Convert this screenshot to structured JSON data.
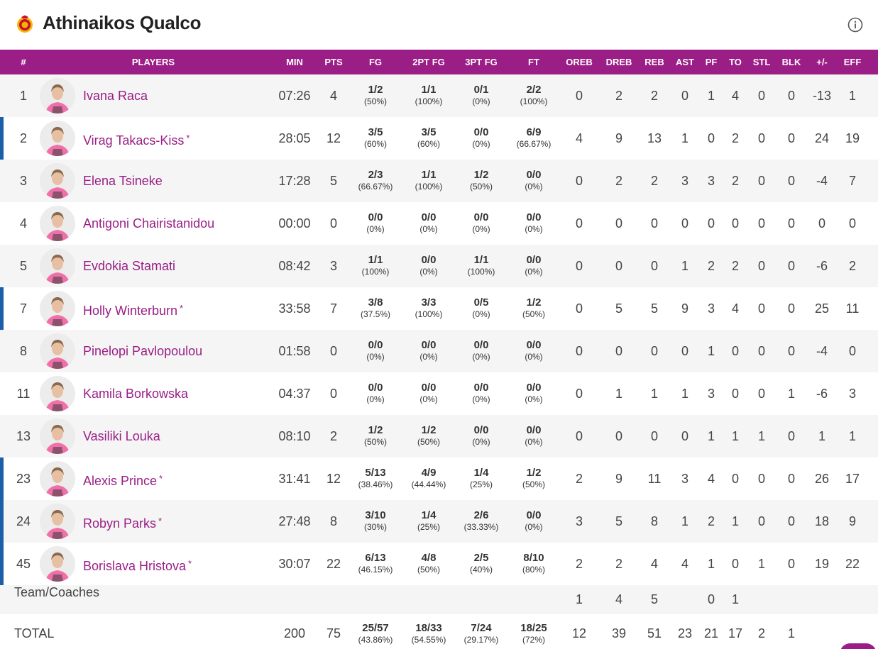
{
  "team": {
    "name": "Athinaikos Qualco",
    "logo_icon": "team-crest-icon",
    "info_icon": "info-icon",
    "brand_color": "#9a1e85",
    "starter_color": "#1a5fa8"
  },
  "columns": [
    "#",
    "PLAYERS",
    "MIN",
    "PTS",
    "FG",
    "2PT FG",
    "3PT FG",
    "FT",
    "OREB",
    "DREB",
    "REB",
    "AST",
    "PF",
    "TO",
    "STL",
    "BLK",
    "+/-",
    "EFF"
  ],
  "players": [
    {
      "num": "1",
      "name": "Ivana Raca",
      "starter": false,
      "min": "07:26",
      "pts": "4",
      "fg": "1/2",
      "fg_pct": "(50%)",
      "fg2": "1/1",
      "fg2_pct": "(100%)",
      "fg3": "0/1",
      "fg3_pct": "(0%)",
      "ft": "2/2",
      "ft_pct": "(100%)",
      "oreb": "0",
      "dreb": "2",
      "reb": "2",
      "ast": "0",
      "pf": "1",
      "to": "4",
      "stl": "0",
      "blk": "0",
      "pm": "-13",
      "eff": "1"
    },
    {
      "num": "2",
      "name": "Virag Takacs-Kiss",
      "starter": true,
      "min": "28:05",
      "pts": "12",
      "fg": "3/5",
      "fg_pct": "(60%)",
      "fg2": "3/5",
      "fg2_pct": "(60%)",
      "fg3": "0/0",
      "fg3_pct": "(0%)",
      "ft": "6/9",
      "ft_pct": "(66.67%)",
      "oreb": "4",
      "dreb": "9",
      "reb": "13",
      "ast": "1",
      "pf": "0",
      "to": "2",
      "stl": "0",
      "blk": "0",
      "pm": "24",
      "eff": "19"
    },
    {
      "num": "3",
      "name": "Elena Tsineke",
      "starter": false,
      "min": "17:28",
      "pts": "5",
      "fg": "2/3",
      "fg_pct": "(66.67%)",
      "fg2": "1/1",
      "fg2_pct": "(100%)",
      "fg3": "1/2",
      "fg3_pct": "(50%)",
      "ft": "0/0",
      "ft_pct": "(0%)",
      "oreb": "0",
      "dreb": "2",
      "reb": "2",
      "ast": "3",
      "pf": "3",
      "to": "2",
      "stl": "0",
      "blk": "0",
      "pm": "-4",
      "eff": "7"
    },
    {
      "num": "4",
      "name": "Antigoni Chairistanidou",
      "starter": false,
      "min": "00:00",
      "pts": "0",
      "fg": "0/0",
      "fg_pct": "(0%)",
      "fg2": "0/0",
      "fg2_pct": "(0%)",
      "fg3": "0/0",
      "fg3_pct": "(0%)",
      "ft": "0/0",
      "ft_pct": "(0%)",
      "oreb": "0",
      "dreb": "0",
      "reb": "0",
      "ast": "0",
      "pf": "0",
      "to": "0",
      "stl": "0",
      "blk": "0",
      "pm": "0",
      "eff": "0"
    },
    {
      "num": "5",
      "name": "Evdokia Stamati",
      "starter": false,
      "min": "08:42",
      "pts": "3",
      "fg": "1/1",
      "fg_pct": "(100%)",
      "fg2": "0/0",
      "fg2_pct": "(0%)",
      "fg3": "1/1",
      "fg3_pct": "(100%)",
      "ft": "0/0",
      "ft_pct": "(0%)",
      "oreb": "0",
      "dreb": "0",
      "reb": "0",
      "ast": "1",
      "pf": "2",
      "to": "2",
      "stl": "0",
      "blk": "0",
      "pm": "-6",
      "eff": "2"
    },
    {
      "num": "7",
      "name": "Holly Winterburn",
      "starter": true,
      "min": "33:58",
      "pts": "7",
      "fg": "3/8",
      "fg_pct": "(37.5%)",
      "fg2": "3/3",
      "fg2_pct": "(100%)",
      "fg3": "0/5",
      "fg3_pct": "(0%)",
      "ft": "1/2",
      "ft_pct": "(50%)",
      "oreb": "0",
      "dreb": "5",
      "reb": "5",
      "ast": "9",
      "pf": "3",
      "to": "4",
      "stl": "0",
      "blk": "0",
      "pm": "25",
      "eff": "11"
    },
    {
      "num": "8",
      "name": "Pinelopi Pavlopoulou",
      "starter": false,
      "min": "01:58",
      "pts": "0",
      "fg": "0/0",
      "fg_pct": "(0%)",
      "fg2": "0/0",
      "fg2_pct": "(0%)",
      "fg3": "0/0",
      "fg3_pct": "(0%)",
      "ft": "0/0",
      "ft_pct": "(0%)",
      "oreb": "0",
      "dreb": "0",
      "reb": "0",
      "ast": "0",
      "pf": "1",
      "to": "0",
      "stl": "0",
      "blk": "0",
      "pm": "-4",
      "eff": "0"
    },
    {
      "num": "11",
      "name": "Kamila Borkowska",
      "starter": false,
      "min": "04:37",
      "pts": "0",
      "fg": "0/0",
      "fg_pct": "(0%)",
      "fg2": "0/0",
      "fg2_pct": "(0%)",
      "fg3": "0/0",
      "fg3_pct": "(0%)",
      "ft": "0/0",
      "ft_pct": "(0%)",
      "oreb": "0",
      "dreb": "1",
      "reb": "1",
      "ast": "1",
      "pf": "3",
      "to": "0",
      "stl": "0",
      "blk": "1",
      "pm": "-6",
      "eff": "3"
    },
    {
      "num": "13",
      "name": "Vasiliki Louka",
      "starter": false,
      "min": "08:10",
      "pts": "2",
      "fg": "1/2",
      "fg_pct": "(50%)",
      "fg2": "1/2",
      "fg2_pct": "(50%)",
      "fg3": "0/0",
      "fg3_pct": "(0%)",
      "ft": "0/0",
      "ft_pct": "(0%)",
      "oreb": "0",
      "dreb": "0",
      "reb": "0",
      "ast": "0",
      "pf": "1",
      "to": "1",
      "stl": "1",
      "blk": "0",
      "pm": "1",
      "eff": "1"
    },
    {
      "num": "23",
      "name": "Alexis Prince",
      "starter": true,
      "min": "31:41",
      "pts": "12",
      "fg": "5/13",
      "fg_pct": "(38.46%)",
      "fg2": "4/9",
      "fg2_pct": "(44.44%)",
      "fg3": "1/4",
      "fg3_pct": "(25%)",
      "ft": "1/2",
      "ft_pct": "(50%)",
      "oreb": "2",
      "dreb": "9",
      "reb": "11",
      "ast": "3",
      "pf": "4",
      "to": "0",
      "stl": "0",
      "blk": "0",
      "pm": "26",
      "eff": "17"
    },
    {
      "num": "24",
      "name": "Robyn Parks",
      "starter": true,
      "min": "27:48",
      "pts": "8",
      "fg": "3/10",
      "fg_pct": "(30%)",
      "fg2": "1/4",
      "fg2_pct": "(25%)",
      "fg3": "2/6",
      "fg3_pct": "(33.33%)",
      "ft": "0/0",
      "ft_pct": "(0%)",
      "oreb": "3",
      "dreb": "5",
      "reb": "8",
      "ast": "1",
      "pf": "2",
      "to": "1",
      "stl": "0",
      "blk": "0",
      "pm": "18",
      "eff": "9"
    },
    {
      "num": "45",
      "name": "Borislava Hristova",
      "starter": true,
      "min": "30:07",
      "pts": "22",
      "fg": "6/13",
      "fg_pct": "(46.15%)",
      "fg2": "4/8",
      "fg2_pct": "(50%)",
      "fg3": "2/5",
      "fg3_pct": "(40%)",
      "ft": "8/10",
      "ft_pct": "(80%)",
      "oreb": "2",
      "dreb": "2",
      "reb": "4",
      "ast": "4",
      "pf": "1",
      "to": "0",
      "stl": "1",
      "blk": "0",
      "pm": "19",
      "eff": "22"
    }
  ],
  "starter_mark": "*",
  "team_coaches": {
    "label": "Team/Coaches",
    "oreb": "1",
    "dreb": "4",
    "reb": "5",
    "pf": "0",
    "to": "1"
  },
  "totals": {
    "label": "TOTAL",
    "min": "200",
    "pts": "75",
    "fg": "25/57",
    "fg_pct": "(43.86%)",
    "fg2": "18/33",
    "fg2_pct": "(54.55%)",
    "fg3": "7/24",
    "fg3_pct": "(29.17%)",
    "ft": "18/25",
    "ft_pct": "(72%)",
    "oreb": "12",
    "dreb": "39",
    "reb": "51",
    "ast": "23",
    "pf": "21",
    "to": "17",
    "stl": "2",
    "blk": "1"
  }
}
